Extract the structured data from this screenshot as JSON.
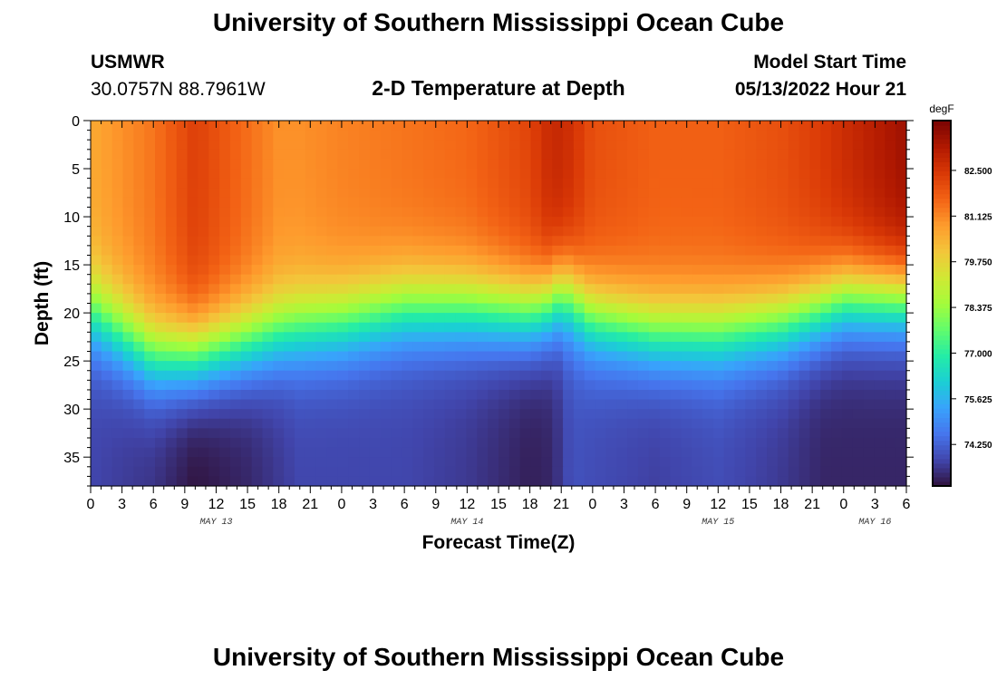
{
  "header": {
    "title": "University of Southern Mississippi Ocean Cube",
    "station_name": "USMWR",
    "station_coords": "30.0757N  88.7961W",
    "plot_title": "2-D Temperature at Depth",
    "model_start_label": "Model Start Time",
    "model_start_value": "05/13/2022 Hour 21"
  },
  "footer": {
    "title": "University of Southern Mississippi Ocean Cube"
  },
  "chart_data": {
    "type": "heatmap",
    "title": "2-D Temperature at Depth",
    "xlabel": "Forecast Time(Z)",
    "ylabel": "Depth (ft)",
    "x_hours_range": [
      0,
      78
    ],
    "y_range": [
      0,
      38
    ],
    "y_inverted": true,
    "x_tick_labels": [
      "0",
      "3",
      "6",
      "9",
      "12",
      "15",
      "18",
      "21",
      "0",
      "3",
      "6",
      "9",
      "12",
      "15",
      "18",
      "21",
      "0",
      "3",
      "6",
      "9",
      "12",
      "15",
      "18",
      "21",
      "0",
      "3",
      "6"
    ],
    "y_ticks": [
      0,
      5,
      10,
      15,
      20,
      25,
      30,
      35
    ],
    "date_labels": [
      {
        "label": "MAY 13",
        "hour": 12
      },
      {
        "label": "MAY 14",
        "hour": 36
      },
      {
        "label": "MAY 15",
        "hour": 60
      },
      {
        "label": "MAY 16",
        "hour": 75
      }
    ],
    "colorbar": {
      "unit": "degF",
      "min": 73.0,
      "max": 84.0,
      "tick_labels": [
        "82.500",
        "81.125",
        "79.750",
        "78.375",
        "77.000",
        "75.625",
        "74.250"
      ],
      "tick_values": [
        82.5,
        81.125,
        79.75,
        78.375,
        77.0,
        75.625,
        74.25
      ],
      "colormap": [
        "#30123b",
        "#4145ab",
        "#4675ed",
        "#39a2fc",
        "#1bcfd4",
        "#24eca6",
        "#61fc6c",
        "#a4fc3b",
        "#d1e834",
        "#f3c63a",
        "#fe9b2d",
        "#f36315",
        "#d93806",
        "#b11901",
        "#7a0403"
      ]
    },
    "sample_columns_hours": [
      0,
      6,
      10,
      15,
      18,
      20,
      24,
      30,
      36,
      42,
      44,
      45,
      46,
      48,
      54,
      60,
      66,
      70,
      72,
      78
    ],
    "thermocline_depth_ft": [
      20,
      24.5,
      24.5,
      23,
      22,
      21.5,
      21,
      19.5,
      19.5,
      20,
      19,
      18,
      18.5,
      20.5,
      22,
      22,
      21,
      19.5,
      18.5,
      18.5
    ],
    "surface_temp_f": [
      80.6,
      81.4,
      82.3,
      81.5,
      81.0,
      81.0,
      81.2,
      81.4,
      81.6,
      82.2,
      82.8,
      82.8,
      82.6,
      82.0,
      81.7,
      81.7,
      82.0,
      82.4,
      82.7,
      83.5
    ],
    "bottom_temp_f": [
      73.8,
      73.5,
      73.0,
      73.3,
      73.6,
      73.8,
      73.8,
      73.8,
      73.6,
      73.2,
      73.3,
      73.6,
      74.0,
      73.9,
      73.7,
      73.9,
      73.6,
      73.3,
      73.3,
      73.3
    ]
  }
}
